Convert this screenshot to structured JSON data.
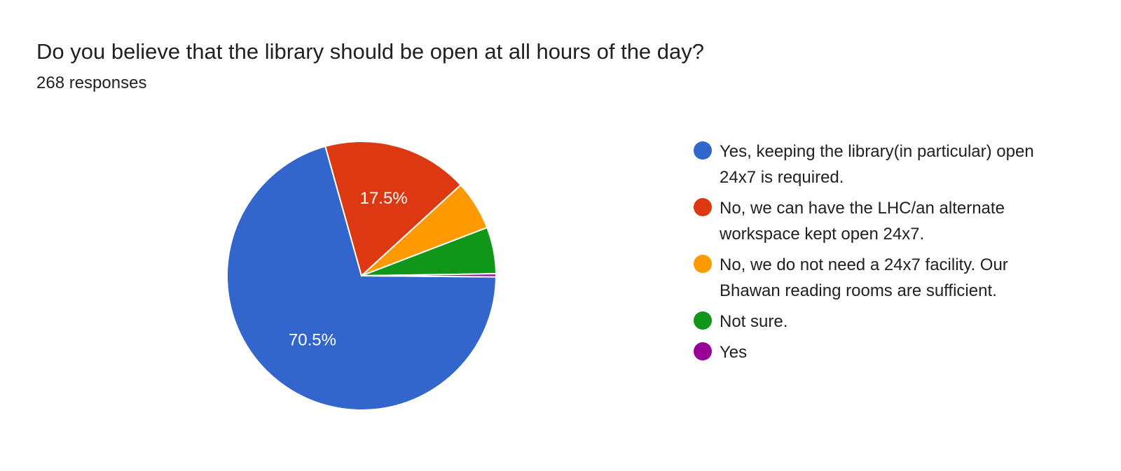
{
  "title": "Do you believe that the library should be open at all hours of the day?",
  "subtitle": "268 responses",
  "chart_data": {
    "type": "pie",
    "total_responses": 268,
    "slices": [
      {
        "label": "Yes, keeping the library(in particular) open 24x7 is required.",
        "value": 189,
        "percent_label": "70.5%",
        "color": "#3366cc"
      },
      {
        "label": "No, we can have the LHC/an alternate workspace kept open 24x7.",
        "value": 47,
        "percent_label": "17.5%",
        "color": "#dc3912"
      },
      {
        "label": "No, we do not need a 24x7 facility. Our Bhawan reading rooms are sufficient.",
        "value": 16,
        "percent_label": "",
        "color": "#ff9900"
      },
      {
        "label": "Not sure.",
        "value": 15,
        "percent_label": "",
        "color": "#109618"
      },
      {
        "label": "Yes",
        "value": 1,
        "percent_label": "",
        "color": "#990099"
      }
    ],
    "legend_position": "right"
  }
}
